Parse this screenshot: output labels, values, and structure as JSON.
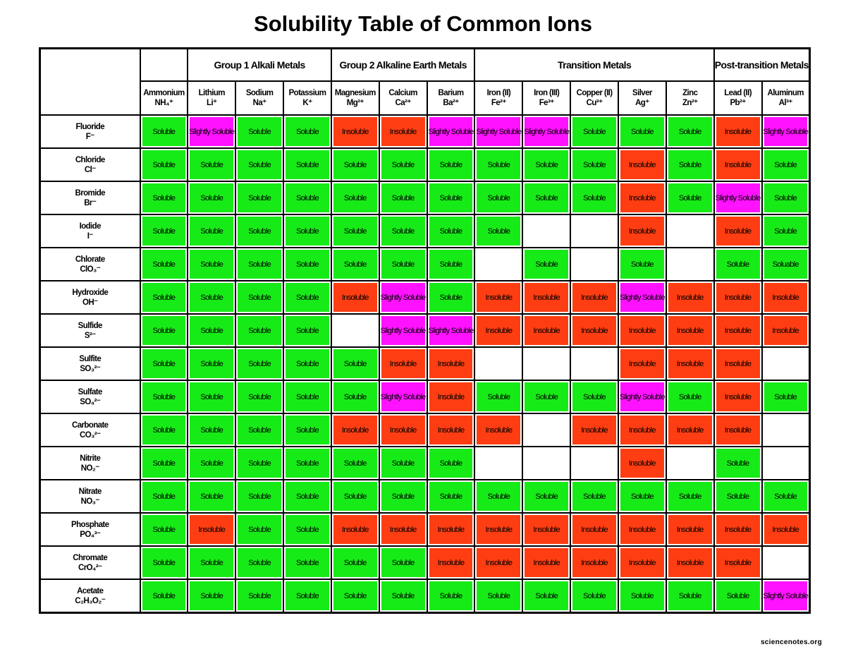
{
  "title": "Solubility Table of Common Ions",
  "table": {
    "groups": [
      {
        "label": null,
        "columns": [
          {
            "name": "Ammonium",
            "formula": "NH₄⁺"
          }
        ]
      },
      {
        "label": "Group 1 Alkali Metals",
        "columns": [
          {
            "name": "Lithium",
            "formula": "Li⁺"
          },
          {
            "name": "Sodium",
            "formula": "Na⁺"
          },
          {
            "name": "Potassium",
            "formula": "K⁺"
          }
        ]
      },
      {
        "label": "Group 2 Alkaline Earth Metals",
        "columns": [
          {
            "name": "Magnesium",
            "formula": "Mg²⁺"
          },
          {
            "name": "Calcium",
            "formula": "Ca²⁺"
          },
          {
            "name": "Barium",
            "formula": "Ba²⁺"
          }
        ]
      },
      {
        "label": "Transition Metals",
        "columns": [
          {
            "name": "Iron (II)",
            "formula": "Fe²⁺"
          },
          {
            "name": "Iron (III)",
            "formula": "Fe³⁺"
          },
          {
            "name": "Copper (II)",
            "formula": "Cu²⁺"
          },
          {
            "name": "Silver",
            "formula": "Ag⁺"
          },
          {
            "name": "Zinc",
            "formula": "Zn²⁺"
          }
        ]
      },
      {
        "label": "Post-transition Metals",
        "columns": [
          {
            "name": "Lead (II)",
            "formula": "Pb²⁺"
          },
          {
            "name": "Aluminum",
            "formula": "Al³⁺"
          }
        ]
      }
    ],
    "colors": {
      "Soluble": "#17eb17",
      "Soluable": "#17eb17",
      "Insoluble": "#ff3d12",
      "Slightly Soluble": "#ff12ff"
    },
    "rows": [
      {
        "name": "Fluoride",
        "formula": "F⁻",
        "cells": [
          "Soluble",
          "Slightly Soluble",
          "Soluble",
          "Soluble",
          "Insoluble",
          "Insoluble",
          "Slightly Soluble",
          "Slightly Soluble",
          "Slightly Soluble",
          "Soluble",
          "Soluble",
          "Soluble",
          "Insoluble",
          "Slightly Soluble"
        ]
      },
      {
        "name": "Chloride",
        "formula": "Cl⁻",
        "cells": [
          "Soluble",
          "Soluble",
          "Soluble",
          "Soluble",
          "Soluble",
          "Soluble",
          "Soluble",
          "Soluble",
          "Soluble",
          "Soluble",
          "Insoluble",
          "Soluble",
          "Insoluble",
          "Soluble"
        ]
      },
      {
        "name": "Bromide",
        "formula": "Br⁻",
        "cells": [
          "Soluble",
          "Soluble",
          "Soluble",
          "Soluble",
          "Soluble",
          "Soluble",
          "Soluble",
          "Soluble",
          "Soluble",
          "Soluble",
          "Insoluble",
          "Soluble",
          "Slightly Soluble",
          "Soluble"
        ]
      },
      {
        "name": "Iodide",
        "formula": "I⁻",
        "cells": [
          "Soluble",
          "Soluble",
          "Soluble",
          "Soluble",
          "Soluble",
          "Soluble",
          "Soluble",
          "Soluble",
          null,
          null,
          "Insoluble",
          null,
          "Insoluble",
          "Soluble"
        ]
      },
      {
        "name": "Chlorate",
        "formula": "ClO₃⁻",
        "cells": [
          "Soluble",
          "Soluble",
          "Soluble",
          "Soluble",
          "Soluble",
          "Soluble",
          "Soluble",
          null,
          "Soluble",
          null,
          "Soluble",
          null,
          "Soluble",
          "Soluable"
        ]
      },
      {
        "name": "Hydroxide",
        "formula": "OH⁻",
        "cells": [
          "Soluble",
          "Soluble",
          "Soluble",
          "Soluble",
          "Insoluble",
          "Slightly Soluble",
          "Soluble",
          "Insoluble",
          "Insoluble",
          "Insoluble",
          "Slightly Soluble",
          "Insoluble",
          "Insoluble",
          "Insoluble"
        ]
      },
      {
        "name": "Sulfide",
        "formula": "S²⁻",
        "cells": [
          "Soluble",
          "Soluble",
          "Soluble",
          "Soluble",
          null,
          "Slightly Soluble",
          "Slightly Soluble",
          "Insoluble",
          "Insoluble",
          "Insoluble",
          "Insoluble",
          "Insoluble",
          "Insoluble",
          "Insoluble"
        ]
      },
      {
        "name": "Sulfite",
        "formula": "SO₃²⁻",
        "cells": [
          "Soluble",
          "Soluble",
          "Soluble",
          "Soluble",
          "Soluble",
          "Insoluble",
          "Insoluble",
          null,
          null,
          null,
          "Insoluble",
          "Insoluble",
          "Insoluble",
          null
        ]
      },
      {
        "name": "Sulfate",
        "formula": "SO₄²⁻",
        "cells": [
          "Soluble",
          "Soluble",
          "Soluble",
          "Soluble",
          "Soluble",
          "Slightly Soluble",
          "Insoluble",
          "Soluble",
          "Soluble",
          "Soluble",
          "Slightly Soluble",
          "Soluble",
          "Insoluble",
          "Soluble"
        ]
      },
      {
        "name": "Carbonate",
        "formula": "CO₃²⁻",
        "cells": [
          "Soluble",
          "Soluble",
          "Soluble",
          "Soluble",
          "Insoluble",
          "Insoluble",
          "Insoluble",
          "Insoluble",
          null,
          "Insoluble",
          "Insoluble",
          "Insoluble",
          "Insoluble",
          null
        ]
      },
      {
        "name": "Nitrite",
        "formula": "NO₂⁻",
        "cells": [
          "Soluble",
          "Soluble",
          "Soluble",
          "Soluble",
          "Soluble",
          "Soluble",
          "Soluble",
          null,
          null,
          null,
          "Insoluble",
          null,
          "Soluble",
          null
        ]
      },
      {
        "name": "Nitrate",
        "formula": "NO₃⁻",
        "cells": [
          "Soluble",
          "Soluble",
          "Soluble",
          "Soluble",
          "Soluble",
          "Soluble",
          "Soluble",
          "Soluble",
          "Soluble",
          "Soluble",
          "Soluble",
          "Soluble",
          "Soluble",
          "Soluble"
        ]
      },
      {
        "name": "Phosphate",
        "formula": "PO₄³⁻",
        "cells": [
          "Soluble",
          "Insoluble",
          "Soluble",
          "Soluble",
          "Insoluble",
          "Insoluble",
          "Insoluble",
          "Insoluble",
          "Insoluble",
          "Insoluble",
          "Insoluble",
          "Insoluble",
          "Insoluble",
          "Insoluble"
        ]
      },
      {
        "name": "Chromate",
        "formula": "CrO₄²⁻",
        "cells": [
          "Soluble",
          "Soluble",
          "Soluble",
          "Soluble",
          "Soluble",
          "Soluble",
          "Insoluble",
          "Insoluble",
          "Insoluble",
          "Insoluble",
          "Insoluble",
          "Insoluble",
          "Insoluble",
          null
        ]
      },
      {
        "name": "Acetate",
        "formula": "C₂H₃O₂⁻",
        "cells": [
          "Soluble",
          "Soluble",
          "Soluble",
          "Soluble",
          "Soluble",
          "Soluble",
          "Soluble",
          "Soluble",
          "Soluble",
          "Soluble",
          "Soluble",
          "Soluble",
          "Soluble",
          "Slightly Soluble"
        ]
      }
    ]
  },
  "footer": "sciencenotes.org"
}
